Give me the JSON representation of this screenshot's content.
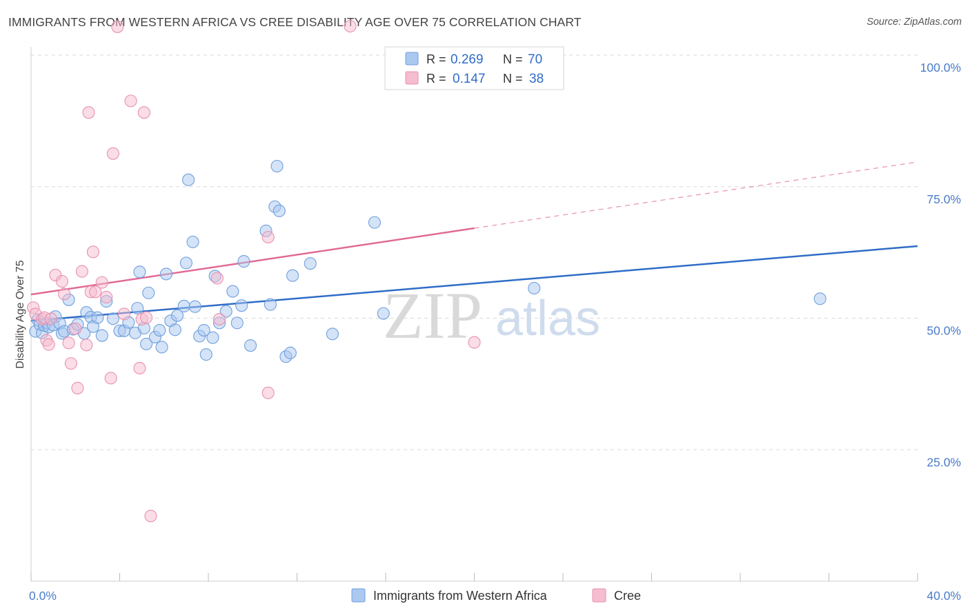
{
  "title": "IMMIGRANTS FROM WESTERN AFRICA VS CREE DISABILITY AGE OVER 75 CORRELATION CHART",
  "source": "Source: ZipAtlas.com",
  "watermark": {
    "zip": "ZIP",
    "atlas": "atlas"
  },
  "legend": {
    "r_label": "R =",
    "n_label": "N =",
    "rows": [
      {
        "r": "0.269",
        "n": "70"
      },
      {
        "r": "0.147",
        "n": "38"
      }
    ]
  },
  "colors": {
    "blue_fill": "#aac8f0",
    "blue_stroke": "#6f9fdc",
    "blue_line": "#2f6cc8",
    "pink_fill": "#f6bcd0",
    "pink_stroke": "#e890b0",
    "pink_line": "#e06a95",
    "grid": "#d8d8d8",
    "tick_text": "#4a7cc9"
  },
  "chart_data": {
    "type": "scatter",
    "title": "IMMIGRANTS FROM WESTERN AFRICA VS CREE DISABILITY AGE OVER 75 CORRELATION CHART",
    "xlabel": "",
    "ylabel": "Disability Age Over 75",
    "xlim": [
      0,
      40
    ],
    "ylim": [
      0,
      100
    ],
    "x_tick_labels": [
      "0.0%",
      "40.0%"
    ],
    "y_ticks": [
      25,
      50,
      75,
      100
    ],
    "y_tick_labels": [
      "25.0%",
      "50.0%",
      "75.0%",
      "100.0%"
    ],
    "grid": true,
    "legend_position": "bottom",
    "series": [
      {
        "name": "Immigrants from Western Africa",
        "color": "#6f9fdc",
        "r": 0.269,
        "n": 70,
        "trend": {
          "x": [
            0,
            40
          ],
          "y": [
            49.5,
            63.7
          ]
        },
        "points": [
          [
            0.2,
            47.5
          ],
          [
            0.3,
            49.7
          ],
          [
            0.4,
            48.8
          ],
          [
            0.5,
            47.2
          ],
          [
            0.6,
            48.6
          ],
          [
            0.7,
            49.1
          ],
          [
            0.8,
            48.3
          ],
          [
            1.0,
            48.7
          ],
          [
            1.1,
            50.3
          ],
          [
            1.3,
            49.0
          ],
          [
            1.4,
            47.1
          ],
          [
            1.5,
            47.5
          ],
          [
            1.7,
            53.5
          ],
          [
            1.9,
            47.9
          ],
          [
            2.1,
            48.8
          ],
          [
            2.4,
            47.1
          ],
          [
            2.5,
            51.1
          ],
          [
            2.7,
            50.2
          ],
          [
            2.8,
            48.4
          ],
          [
            3.0,
            50.1
          ],
          [
            3.2,
            46.7
          ],
          [
            3.4,
            53.2
          ],
          [
            3.7,
            49.9
          ],
          [
            4.0,
            47.6
          ],
          [
            4.2,
            47.6
          ],
          [
            4.4,
            49.2
          ],
          [
            4.7,
            47.2
          ],
          [
            4.8,
            51.9
          ],
          [
            4.9,
            58.8
          ],
          [
            5.1,
            48.1
          ],
          [
            5.2,
            45.1
          ],
          [
            5.3,
            54.8
          ],
          [
            5.6,
            46.4
          ],
          [
            5.8,
            47.7
          ],
          [
            5.9,
            44.5
          ],
          [
            6.1,
            58.4
          ],
          [
            6.3,
            49.5
          ],
          [
            6.5,
            47.8
          ],
          [
            6.6,
            50.5
          ],
          [
            6.9,
            52.3
          ],
          [
            7.0,
            60.5
          ],
          [
            7.1,
            76.3
          ],
          [
            7.3,
            64.5
          ],
          [
            7.4,
            52.2
          ],
          [
            7.6,
            46.6
          ],
          [
            7.8,
            47.7
          ],
          [
            7.9,
            43.1
          ],
          [
            8.2,
            46.3
          ],
          [
            8.3,
            58.0
          ],
          [
            8.5,
            49.1
          ],
          [
            8.8,
            51.3
          ],
          [
            9.1,
            55.1
          ],
          [
            9.3,
            49.1
          ],
          [
            9.5,
            52.4
          ],
          [
            9.6,
            60.8
          ],
          [
            9.9,
            44.8
          ],
          [
            10.6,
            66.6
          ],
          [
            10.8,
            52.6
          ],
          [
            11.0,
            71.2
          ],
          [
            11.1,
            78.9
          ],
          [
            11.2,
            70.4
          ],
          [
            11.5,
            42.7
          ],
          [
            11.7,
            43.4
          ],
          [
            11.8,
            58.1
          ],
          [
            12.6,
            60.4
          ],
          [
            13.6,
            47.0
          ],
          [
            15.5,
            68.2
          ],
          [
            15.9,
            50.9
          ],
          [
            22.7,
            55.7
          ],
          [
            35.6,
            53.7
          ]
        ]
      },
      {
        "name": "Cree",
        "color": "#e890b0",
        "r": 0.147,
        "n": 38,
        "trend": {
          "x": [
            0,
            20
          ],
          "y": [
            54.5,
            67.1
          ],
          "dashed_to": {
            "x": 40,
            "y": 79.7
          }
        },
        "points": [
          [
            0.1,
            52.0
          ],
          [
            0.2,
            50.8
          ],
          [
            0.5,
            49.8
          ],
          [
            0.6,
            50.1
          ],
          [
            0.7,
            45.8
          ],
          [
            0.8,
            45.0
          ],
          [
            0.9,
            49.9
          ],
          [
            1.1,
            58.2
          ],
          [
            1.4,
            57.0
          ],
          [
            1.5,
            54.6
          ],
          [
            1.7,
            45.3
          ],
          [
            1.8,
            41.4
          ],
          [
            2.0,
            48.0
          ],
          [
            2.1,
            36.7
          ],
          [
            2.3,
            58.9
          ],
          [
            2.5,
            44.9
          ],
          [
            2.6,
            89.1
          ],
          [
            2.7,
            55.0
          ],
          [
            2.8,
            62.6
          ],
          [
            2.9,
            55.0
          ],
          [
            3.2,
            56.8
          ],
          [
            3.4,
            54.0
          ],
          [
            3.6,
            38.6
          ],
          [
            3.7,
            81.3
          ],
          [
            3.9,
            105.4
          ],
          [
            4.2,
            50.8
          ],
          [
            4.5,
            91.3
          ],
          [
            4.9,
            40.5
          ],
          [
            5.0,
            49.8
          ],
          [
            5.1,
            89.1
          ],
          [
            5.2,
            50.1
          ],
          [
            5.4,
            12.4
          ],
          [
            8.4,
            57.6
          ],
          [
            8.5,
            49.8
          ],
          [
            10.7,
            65.4
          ],
          [
            10.7,
            35.8
          ],
          [
            14.4,
            105.5
          ],
          [
            20.0,
            45.4
          ]
        ]
      }
    ]
  },
  "bottom_legend": [
    {
      "label": "Immigrants from Western Africa"
    },
    {
      "label": "Cree"
    }
  ]
}
